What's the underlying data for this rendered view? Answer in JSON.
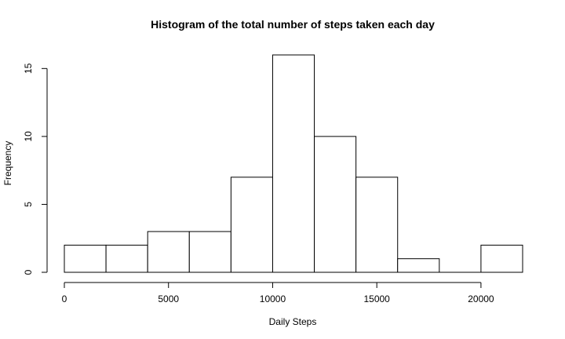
{
  "chart_data": {
    "type": "bar",
    "title": "Histogram of the total number of steps taken each day",
    "xlabel": "Daily Steps",
    "ylabel": "Frequency",
    "bins": [
      {
        "start": 0,
        "end": 2000,
        "count": 2
      },
      {
        "start": 2000,
        "end": 4000,
        "count": 2
      },
      {
        "start": 4000,
        "end": 6000,
        "count": 3
      },
      {
        "start": 6000,
        "end": 8000,
        "count": 3
      },
      {
        "start": 8000,
        "end": 10000,
        "count": 7
      },
      {
        "start": 10000,
        "end": 12000,
        "count": 16
      },
      {
        "start": 12000,
        "end": 14000,
        "count": 10
      },
      {
        "start": 14000,
        "end": 16000,
        "count": 7
      },
      {
        "start": 16000,
        "end": 18000,
        "count": 1
      },
      {
        "start": 18000,
        "end": 20000,
        "count": 0
      },
      {
        "start": 20000,
        "end": 22000,
        "count": 2
      }
    ],
    "xlim": [
      0,
      22000
    ],
    "ylim": [
      0,
      16
    ],
    "x_ticks": [
      0,
      5000,
      10000,
      15000,
      20000
    ],
    "x_tick_labels": [
      "0",
      "5000",
      "10000",
      "15000",
      "20000"
    ],
    "y_ticks": [
      0,
      5,
      10,
      15
    ],
    "y_tick_labels": [
      "0",
      "5",
      "10",
      "15"
    ],
    "grid": false,
    "legend": "none"
  }
}
